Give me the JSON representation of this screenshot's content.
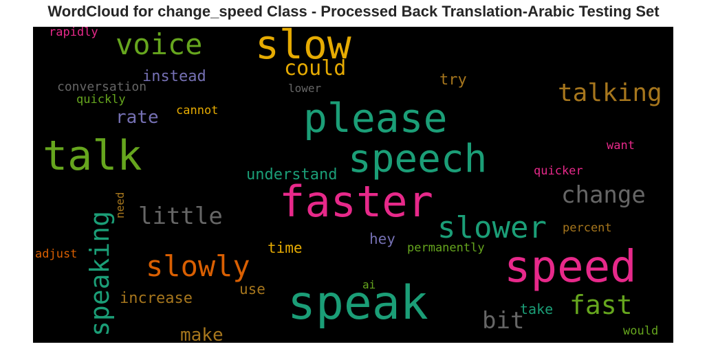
{
  "title": "WordCloud for change_speed Class - Processed Back Translation-Arabic Testing Set",
  "words": [
    {
      "text": "slow",
      "color": "#e6ab02"
    },
    {
      "text": "please",
      "color": "#1b9e77"
    },
    {
      "text": "talk",
      "color": "#66a61e"
    },
    {
      "text": "speech",
      "color": "#1b9e77"
    },
    {
      "text": "faster",
      "color": "#e7298a"
    },
    {
      "text": "speak",
      "color": "#1b9e77"
    },
    {
      "text": "speed",
      "color": "#e7298a"
    },
    {
      "text": "slower",
      "color": "#1b9e77"
    },
    {
      "text": "slowly",
      "color": "#d95f02"
    },
    {
      "text": "voice",
      "color": "#66a61e"
    },
    {
      "text": "talking",
      "color": "#a6761d"
    },
    {
      "text": "speaking",
      "color": "#1b9e77"
    },
    {
      "text": "fast",
      "color": "#66a61e"
    },
    {
      "text": "change",
      "color": "#666666"
    },
    {
      "text": "little",
      "color": "#666666"
    },
    {
      "text": "could",
      "color": "#e6ab02"
    },
    {
      "text": "bit",
      "color": "#666666"
    },
    {
      "text": "make",
      "color": "#a6761d"
    },
    {
      "text": "rate",
      "color": "#7570b3"
    },
    {
      "text": "instead",
      "color": "#7570b3"
    },
    {
      "text": "understand",
      "color": "#1b9e77"
    },
    {
      "text": "increase",
      "color": "#a6761d"
    },
    {
      "text": "try",
      "color": "#a6761d"
    },
    {
      "text": "conversation",
      "color": "#666666"
    },
    {
      "text": "rapidly",
      "color": "#e7298a"
    },
    {
      "text": "quickly",
      "color": "#66a61e"
    },
    {
      "text": "cannot",
      "color": "#e6ab02"
    },
    {
      "text": "lower",
      "color": "#666666"
    },
    {
      "text": "want",
      "color": "#e7298a"
    },
    {
      "text": "quicker",
      "color": "#e7298a"
    },
    {
      "text": "percent",
      "color": "#a6761d"
    },
    {
      "text": "permanently",
      "color": "#66a61e"
    },
    {
      "text": "hey",
      "color": "#7570b3"
    },
    {
      "text": "time",
      "color": "#e6ab02"
    },
    {
      "text": "use",
      "color": "#a6761d"
    },
    {
      "text": "adjust",
      "color": "#d95f02"
    },
    {
      "text": "need",
      "color": "#a6761d"
    },
    {
      "text": "take",
      "color": "#1b9e77"
    },
    {
      "text": "ai",
      "color": "#66a61e"
    },
    {
      "text": "would",
      "color": "#66a61e"
    }
  ]
}
